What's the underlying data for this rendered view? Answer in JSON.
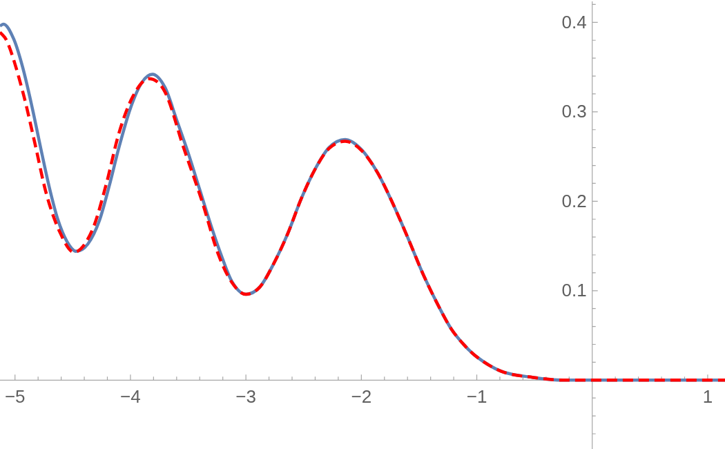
{
  "chart_data": {
    "type": "line",
    "xlim": [
      -5.13,
      1.15
    ],
    "ylim": [
      -0.077,
      0.425
    ],
    "xticks": [
      {
        "value": -5,
        "label": "−5"
      },
      {
        "value": -4.8,
        "label": null
      },
      {
        "value": -4.6,
        "label": null
      },
      {
        "value": -4.4,
        "label": null
      },
      {
        "value": -4.2,
        "label": null
      },
      {
        "value": -4,
        "label": "−4"
      },
      {
        "value": -3.8,
        "label": null
      },
      {
        "value": -3.6,
        "label": null
      },
      {
        "value": -3.4,
        "label": null
      },
      {
        "value": -3.2,
        "label": null
      },
      {
        "value": -3,
        "label": "−3"
      },
      {
        "value": -2.8,
        "label": null
      },
      {
        "value": -2.6,
        "label": null
      },
      {
        "value": -2.4,
        "label": null
      },
      {
        "value": -2.2,
        "label": null
      },
      {
        "value": -2,
        "label": "−2"
      },
      {
        "value": -1.8,
        "label": null
      },
      {
        "value": -1.6,
        "label": null
      },
      {
        "value": -1.4,
        "label": null
      },
      {
        "value": -1.2,
        "label": null
      },
      {
        "value": -1,
        "label": "−1"
      },
      {
        "value": -0.8,
        "label": null
      },
      {
        "value": -0.6,
        "label": null
      },
      {
        "value": -0.4,
        "label": null
      },
      {
        "value": -0.2,
        "label": null
      },
      {
        "value": 0.2,
        "label": null
      },
      {
        "value": 0.4,
        "label": null
      },
      {
        "value": 0.6,
        "label": null
      },
      {
        "value": 0.8,
        "label": null
      },
      1
    ],
    "yticks": [
      {
        "value": -0.06,
        "label": null
      },
      {
        "value": -0.04,
        "label": null
      },
      {
        "value": -0.02,
        "label": null
      },
      {
        "value": 0.02,
        "label": null
      },
      {
        "value": 0.04,
        "label": null
      },
      {
        "value": 0.06,
        "label": null
      },
      {
        "value": 0.08,
        "label": null
      },
      0.1,
      {
        "value": 0.12,
        "label": null
      },
      {
        "value": 0.14,
        "label": null
      },
      {
        "value": 0.16,
        "label": null
      },
      {
        "value": 0.18,
        "label": null
      },
      0.2,
      {
        "value": 0.22,
        "label": null
      },
      {
        "value": 0.24,
        "label": null
      },
      {
        "value": 0.26,
        "label": null
      },
      {
        "value": 0.28,
        "label": null
      },
      0.3,
      {
        "value": 0.32,
        "label": null
      },
      {
        "value": 0.34,
        "label": null
      },
      {
        "value": 0.36,
        "label": null
      },
      {
        "value": 0.38,
        "label": null
      },
      0.4,
      {
        "value": 0.42,
        "label": null
      }
    ],
    "series": [
      {
        "color": "#5e81b5",
        "line_style": "solid",
        "x": [
          -5.13,
          -5.1,
          -5.01,
          -4.93,
          -4.85,
          -4.77,
          -4.7,
          -4.63,
          -4.55,
          -4.47,
          -4.37,
          -4.27,
          -4.18,
          -4.1,
          -4,
          -3.9,
          -3.81,
          -3.7,
          -3.6,
          -3.5,
          -3.4,
          -3.3,
          -3.22,
          -3.12,
          -3,
          -2.88,
          -2.76,
          -2.64,
          -2.52,
          -2.4,
          -2.28,
          -2.14,
          -2,
          -1.86,
          -1.74,
          -1.6,
          -1.46,
          -1.32,
          -1.22,
          -1.1,
          -1,
          -0.79,
          -0.51,
          -0.25,
          0,
          1.15
        ],
        "values": [
          0.396,
          0.398,
          0.381,
          0.348,
          0.304,
          0.255,
          0.214,
          0.18,
          0.155,
          0.144,
          0.152,
          0.178,
          0.219,
          0.26,
          0.304,
          0.333,
          0.342,
          0.327,
          0.291,
          0.254,
          0.213,
          0.172,
          0.142,
          0.11,
          0.096,
          0.104,
          0.13,
          0.163,
          0.203,
          0.236,
          0.26,
          0.269,
          0.258,
          0.232,
          0.201,
          0.16,
          0.117,
          0.08,
          0.057,
          0.038,
          0.026,
          0.01,
          0.003,
          0,
          0,
          0
        ]
      },
      {
        "color": "#ff0000",
        "line_style": "dashed",
        "x": [
          -5.13,
          -5.07,
          -4.93,
          -4.83,
          -4.73,
          -4.61,
          -4.49,
          -4.33,
          -4.21,
          -4.1,
          -3.98,
          -3.84,
          -3.7,
          -3.54,
          -3.38,
          -3.24,
          -3.12,
          -3,
          -2.88,
          -2.76,
          -2.64,
          -2.52,
          -2.4,
          -2.28,
          -2.14,
          -2,
          -1.86,
          -1.74,
          -1.6,
          -1.46,
          -1.32,
          -1.22,
          -1.1,
          -1,
          -0.79,
          -0.51,
          -0.25,
          0,
          1.15
        ],
        "values": [
          0.389,
          0.379,
          0.321,
          0.266,
          0.209,
          0.165,
          0.143,
          0.168,
          0.219,
          0.276,
          0.317,
          0.337,
          0.322,
          0.26,
          0.2,
          0.141,
          0.109,
          0.096,
          0.104,
          0.13,
          0.163,
          0.203,
          0.236,
          0.259,
          0.267,
          0.257,
          0.232,
          0.201,
          0.16,
          0.117,
          0.08,
          0.057,
          0.038,
          0.026,
          0.01,
          0.003,
          0,
          0,
          0
        ]
      }
    ]
  }
}
